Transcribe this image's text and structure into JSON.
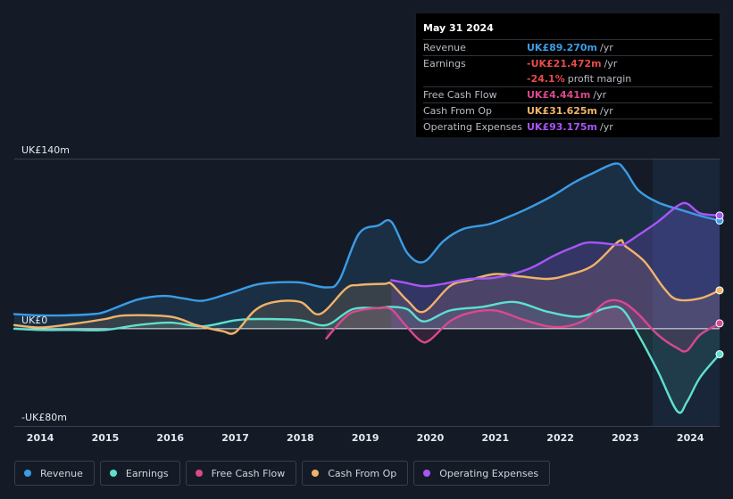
{
  "tooltip": {
    "date": "May 31 2024",
    "rows": [
      {
        "label": "Revenue",
        "value": "UK£89.270m",
        "unit": "/yr",
        "color": "#3b9ce7"
      },
      {
        "label": "Earnings",
        "value": "-UK£21.472m",
        "unit": "/yr",
        "color": "#e84a4a"
      },
      {
        "label": "",
        "value": "-24.1%",
        "unit": "profit margin",
        "color": "#e84a4a"
      },
      {
        "label": "Free Cash Flow",
        "value": "UK£4.441m",
        "unit": "/yr",
        "color": "#d9498e"
      },
      {
        "label": "Cash From Op",
        "value": "UK£31.625m",
        "unit": "/yr",
        "color": "#f0b36a"
      },
      {
        "label": "Operating Expenses",
        "value": "UK£93.175m",
        "unit": "/yr",
        "color": "#a855f7"
      }
    ]
  },
  "legend": [
    {
      "label": "Revenue",
      "color": "#3b9ce7"
    },
    {
      "label": "Earnings",
      "color": "#5ee0cf"
    },
    {
      "label": "Free Cash Flow",
      "color": "#d9498e"
    },
    {
      "label": "Cash From Op",
      "color": "#f0b36a"
    },
    {
      "label": "Operating Expenses",
      "color": "#a855f7"
    }
  ],
  "chart_data": {
    "type": "line",
    "ylim": [
      -80,
      140
    ],
    "y_labels": [
      {
        "text": "UK£140m",
        "value": 140
      },
      {
        "text": "UK£0",
        "value": 0
      },
      {
        "text": "-UK£80m",
        "value": -80
      }
    ],
    "x_ticks": [
      "2014",
      "2015",
      "2016",
      "2017",
      "2018",
      "2019",
      "2020",
      "2021",
      "2022",
      "2023",
      "2024"
    ],
    "x_tick_values": [
      2014,
      2015,
      2016,
      2017,
      2018,
      2019,
      2020,
      2021,
      2022,
      2023,
      2024
    ],
    "xlim": [
      2013.6,
      2024.45
    ],
    "highlight_start": 2023.42,
    "series": [
      {
        "name": "Revenue",
        "color": "#3b9ce7",
        "x": [
          2013.6,
          2014.0,
          2014.4,
          2014.8,
          2015.0,
          2015.5,
          2015.9,
          2016.2,
          2016.5,
          2016.9,
          2017.3,
          2017.6,
          2018.0,
          2018.4,
          2018.6,
          2018.9,
          2019.2,
          2019.4,
          2019.65,
          2019.9,
          2020.2,
          2020.5,
          2020.9,
          2021.2,
          2021.5,
          2021.9,
          2022.2,
          2022.5,
          2022.85,
          2023.0,
          2023.2,
          2023.5,
          2023.9,
          2024.15,
          2024.45
        ],
        "y": [
          12,
          11,
          11,
          12,
          14,
          24,
          27,
          25,
          23,
          29,
          36,
          38,
          38,
          34,
          40,
          78,
          85,
          88,
          62,
          55,
          72,
          82,
          86,
          92,
          99,
          110,
          120,
          128,
          136,
          130,
          114,
          104,
          97,
          93,
          89
        ]
      },
      {
        "name": "Earnings",
        "color": "#5ee0cf",
        "x": [
          2013.6,
          2014.0,
          2014.5,
          2015.0,
          2015.5,
          2016.0,
          2016.5,
          2017.0,
          2017.4,
          2018.0,
          2018.4,
          2018.8,
          2019.2,
          2019.4,
          2019.65,
          2019.9,
          2020.3,
          2020.8,
          2021.3,
          2021.8,
          2022.3,
          2022.7,
          2022.95,
          2023.2,
          2023.5,
          2023.8,
          2023.95,
          2024.15,
          2024.45
        ],
        "y": [
          0,
          -1,
          -1,
          -1,
          3,
          5,
          2,
          7,
          8,
          7,
          3,
          16,
          17,
          18,
          16,
          6,
          15,
          18,
          22,
          14,
          10,
          17,
          16,
          -5,
          -35,
          -68,
          -60,
          -40,
          -21
        ]
      },
      {
        "name": "Free Cash Flow",
        "color": "#d9498e",
        "x": [
          2018.4,
          2018.7,
          2018.9,
          2019.2,
          2019.4,
          2019.6,
          2019.85,
          2020.0,
          2020.3,
          2020.6,
          2021.0,
          2021.4,
          2021.8,
          2022.1,
          2022.4,
          2022.7,
          2022.95,
          2023.2,
          2023.5,
          2023.8,
          2023.95,
          2024.15,
          2024.45
        ],
        "y": [
          -8,
          10,
          15,
          17,
          16,
          4,
          -10,
          -9,
          6,
          13,
          15,
          8,
          2,
          2,
          8,
          22,
          22,
          12,
          -5,
          -16,
          -18,
          -5,
          4.4
        ]
      },
      {
        "name": "Cash From Op",
        "color": "#f0b36a",
        "x": [
          2013.6,
          2014.0,
          2014.5,
          2015.0,
          2015.3,
          2016.0,
          2016.4,
          2016.8,
          2017.0,
          2017.3,
          2017.6,
          2018.0,
          2018.3,
          2018.7,
          2018.9,
          2019.3,
          2019.4,
          2019.65,
          2019.9,
          2020.3,
          2020.6,
          2021.0,
          2021.4,
          2021.8,
          2022.1,
          2022.5,
          2022.9,
          2023.0,
          2023.3,
          2023.6,
          2023.8,
          2024.15,
          2024.45
        ],
        "y": [
          3,
          1,
          4,
          8,
          11,
          10,
          3,
          -2,
          -3,
          15,
          22,
          22,
          12,
          33,
          36,
          37,
          37,
          23,
          14,
          35,
          40,
          45,
          43,
          41,
          44,
          52,
          72,
          68,
          55,
          33,
          24,
          25,
          31.6
        ]
      },
      {
        "name": "Operating Expenses",
        "color": "#a855f7",
        "x": [
          2019.4,
          2019.6,
          2019.9,
          2020.2,
          2020.6,
          2021.0,
          2021.5,
          2021.9,
          2022.2,
          2022.45,
          2022.9,
          2023.0,
          2023.2,
          2023.5,
          2023.8,
          2023.95,
          2024.15,
          2024.45
        ],
        "y": [
          40,
          38,
          35,
          37,
          41,
          42,
          49,
          60,
          67,
          71,
          69,
          70,
          77,
          88,
          101,
          103,
          95,
          93.2
        ]
      }
    ]
  }
}
